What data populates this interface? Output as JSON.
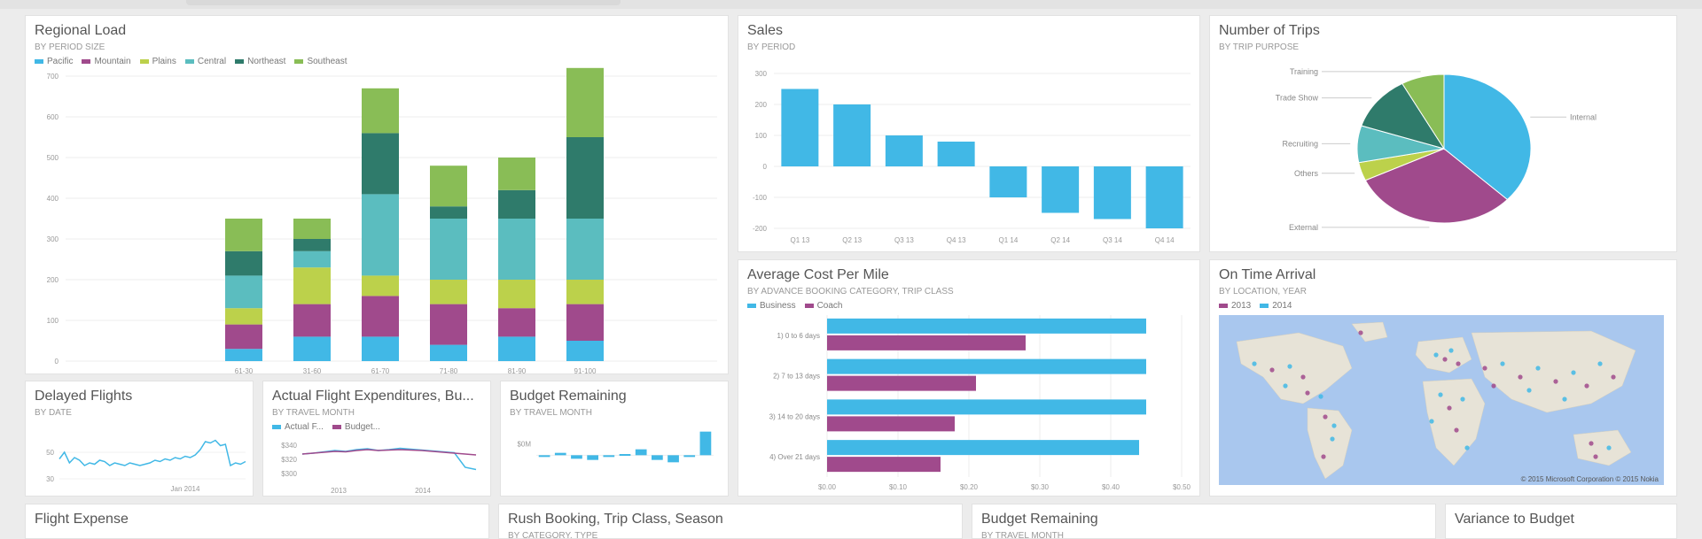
{
  "colors": {
    "pacific": "#41b8e6",
    "mountain": "#a04a8c",
    "plains": "#bcd14b",
    "central": "#5bbdbf",
    "northeast": "#2f7b6b",
    "southeast": "#89bd56",
    "teal": "#41b8e6",
    "purple": "#a04a8c",
    "dark_teal": "#2f7b6b",
    "land": "#e7e3d7",
    "water": "#a9c7ee"
  },
  "tiles": {
    "regional_load": {
      "title": "Regional Load",
      "subtitle": "BY PERIOD SIZE"
    },
    "sales": {
      "title": "Sales",
      "subtitle": "BY PERIOD"
    },
    "trips": {
      "title": "Number of Trips",
      "subtitle": "BY TRIP PURPOSE"
    },
    "avg_cost": {
      "title": "Average Cost Per Mile",
      "subtitle": "BY ADVANCE BOOKING CATEGORY, TRIP CLASS"
    },
    "ontime": {
      "title": "On Time Arrival",
      "subtitle": "BY LOCATION, YEAR"
    },
    "delayed": {
      "title": "Delayed Flights",
      "subtitle": "BY DATE"
    },
    "actual": {
      "title": "Actual Flight Expenditures, Bu...",
      "subtitle": "BY TRAVEL MONTH"
    },
    "budget_small": {
      "title": "Budget Remaining",
      "subtitle": "BY TRAVEL MONTH"
    },
    "flight_expense": {
      "title": "Flight Expense"
    },
    "rush": {
      "title": "Rush Booking, Trip Class, Season",
      "subtitle": "BY CATEGORY, TYPE"
    },
    "budget_remaining": {
      "title": "Budget Remaining",
      "subtitle": "BY TRAVEL MONTH"
    },
    "variance": {
      "title": "Variance to Budget"
    }
  },
  "legends": {
    "regional_load": [
      "Pacific",
      "Mountain",
      "Plains",
      "Central",
      "Northeast",
      "Southeast"
    ],
    "avg_cost": [
      "Business",
      "Coach"
    ],
    "ontime": [
      "2013",
      "2014"
    ],
    "actual": [
      "Actual F...",
      "Budget..."
    ]
  },
  "map": {
    "copyright": "© 2015 Microsoft Corporation   © 2015 Nokia"
  },
  "chart_data": [
    {
      "id": "regional_load",
      "type": "bar",
      "stacked": true,
      "title": "Regional Load",
      "categories": [
        "61-30",
        "31-60",
        "61-70",
        "71-80",
        "81-90",
        "91-100"
      ],
      "series": [
        {
          "name": "Pacific",
          "values": [
            30,
            60,
            60,
            40,
            60,
            50
          ]
        },
        {
          "name": "Mountain",
          "values": [
            60,
            80,
            100,
            100,
            70,
            90
          ]
        },
        {
          "name": "Plains",
          "values": [
            40,
            90,
            50,
            60,
            70,
            60
          ]
        },
        {
          "name": "Central",
          "values": [
            80,
            40,
            200,
            150,
            150,
            150
          ]
        },
        {
          "name": "Northeast",
          "values": [
            60,
            30,
            150,
            30,
            70,
            200
          ]
        },
        {
          "name": "Southeast",
          "values": [
            80,
            50,
            110,
            100,
            80,
            170
          ]
        }
      ],
      "ylim": [
        0,
        700
      ],
      "yticks": [
        "0",
        "100",
        "200",
        "300",
        "400",
        "500",
        "600",
        "700"
      ],
      "grid": true,
      "legend": "top-left"
    },
    {
      "id": "sales",
      "type": "bar",
      "title": "Sales",
      "categories": [
        "Q1 13",
        "Q2 13",
        "Q3 13",
        "Q4 13",
        "Q1 14",
        "Q2 14",
        "Q3 14",
        "Q4 14"
      ],
      "values": [
        250,
        200,
        100,
        80,
        -100,
        -150,
        -170,
        -200
      ],
      "ylim": [
        -200,
        300
      ],
      "yticks": [
        "-200",
        "-100",
        "0",
        "100",
        "200",
        "300"
      ],
      "grid": true
    },
    {
      "id": "trips",
      "type": "pie",
      "title": "Number of Trips",
      "labels": [
        "Internal",
        "External",
        "Others",
        "Recruiting",
        "Trade Show",
        "Training"
      ],
      "values": [
        37,
        31,
        4,
        8,
        12,
        8
      ]
    },
    {
      "id": "avg_cost",
      "type": "bar",
      "orientation": "horizontal",
      "title": "Average Cost Per Mile",
      "categories": [
        "1) 0 to 6 days",
        "2) 7 to 13 days",
        "3) 14 to 20 days",
        "4) Over 21 days"
      ],
      "series": [
        {
          "name": "Business",
          "values": [
            0.45,
            0.45,
            0.45,
            0.44
          ]
        },
        {
          "name": "Coach",
          "values": [
            0.28,
            0.21,
            0.18,
            0.16
          ]
        }
      ],
      "xlim": [
        0,
        0.5
      ],
      "xticks": [
        "$0.00",
        "$0.10",
        "$0.20",
        "$0.30",
        "$0.40",
        "$0.50"
      ],
      "legend": "top-left"
    },
    {
      "id": "delayed",
      "type": "line",
      "title": "Delayed Flights",
      "values": [
        45,
        50,
        42,
        46,
        44,
        40,
        42,
        41,
        44,
        43,
        40,
        42,
        41,
        40,
        42,
        41,
        40,
        41,
        42,
        44,
        43,
        45,
        44,
        46,
        45,
        47,
        46,
        48,
        52,
        58,
        57,
        59,
        55,
        56,
        40,
        42,
        41,
        43
      ],
      "ylim": [
        30,
        70
      ],
      "yticks": [
        "30",
        "50"
      ],
      "xticks": [
        "Jan 2014"
      ]
    },
    {
      "id": "actual",
      "type": "line",
      "title": "Actual Flight Expenditures, Bu...",
      "series": [
        {
          "name": "Actual F...",
          "values": [
            310,
            312,
            315,
            318,
            316,
            320,
            322,
            318,
            320,
            323,
            321,
            319,
            317,
            315,
            313,
            280,
            275
          ]
        },
        {
          "name": "Budget...",
          "values": [
            310,
            312,
            314,
            316,
            315,
            318,
            320,
            318,
            319,
            320,
            319,
            318,
            316,
            314,
            312,
            310,
            308
          ]
        }
      ],
      "ylim": [
        250,
        350
      ],
      "yticks": [
        "$300",
        "$320",
        "$340"
      ],
      "xticks": [
        "2013",
        "2014"
      ],
      "legend": "top-left"
    },
    {
      "id": "budget_small",
      "type": "bar",
      "title": "Budget Remaining",
      "values": [
        0,
        2,
        -3,
        -4,
        0,
        1,
        5,
        -4,
        -6,
        0,
        20
      ],
      "ylim": [
        -20,
        25
      ],
      "yticks": [
        "$0M"
      ]
    }
  ]
}
